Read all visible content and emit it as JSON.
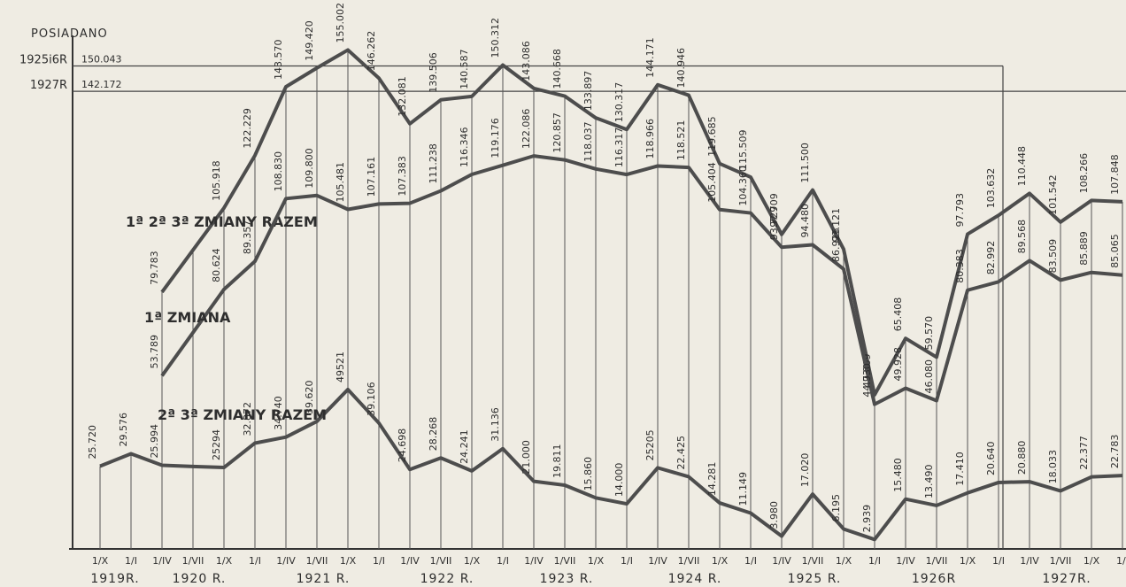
{
  "chart_data": {
    "type": "line",
    "title": "POSIADANO",
    "categories": [
      "1/X",
      "1/I",
      "1/IV",
      "1/VII",
      "1/X",
      "1/I",
      "1/IV",
      "1/VII",
      "1/X",
      "1/I",
      "1/IV",
      "1/VII",
      "1/X",
      "1/I",
      "1/IV",
      "1/VII",
      "1/X",
      "1/I",
      "1/IV",
      "1/VII",
      "1/X",
      "1/I",
      "1/IV",
      "1/VII",
      "1/X",
      "1/I",
      "1/IV",
      "1/VII",
      "1/X",
      "1/I",
      "1/IV",
      "1/VII",
      "1/X",
      "1/I"
    ],
    "years": [
      "1919R.",
      "1920 R.",
      "1921 R.",
      "1922 R.",
      "1923 R.",
      "1924 R.",
      "1925 R.",
      "1926R",
      "1927R."
    ],
    "ylim": [
      0,
      162000
    ],
    "reference_lines": [
      {
        "label": "1925i6R",
        "value": 150043,
        "value_label": "150.043"
      },
      {
        "label": "1927R",
        "value": 142172,
        "value_label": "142.172"
      }
    ],
    "series": [
      {
        "name": "1ª 2ª 3ª ZMIANY RAZEM",
        "color": "#4d4d4d",
        "values": [
          null,
          null,
          79783,
          92850,
          105918,
          122229,
          143570,
          149420,
          155002,
          146262,
          132081,
          139506,
          140587,
          150312,
          143086,
          140668,
          133897,
          130317,
          144171,
          140946,
          119685,
          115509,
          97709,
          111500,
          93121,
          47869,
          65408,
          59570,
          97793,
          103632,
          110448,
          101542,
          108266,
          107848
        ],
        "value_labels": [
          null,
          null,
          "79.783",
          null,
          "105.918",
          "122.229",
          "143.570",
          "149.420",
          "155.002",
          "146.262",
          "132.081",
          "139.506",
          "140.587",
          "150.312",
          "143.086",
          "140.668",
          "133.897",
          "130.317",
          "144.171",
          "140.946",
          "119.685",
          "115.509",
          "97.709",
          "111.500",
          "93.121",
          "47.869",
          "65.408",
          "59.570",
          "97.793",
          "103.632",
          "110.448",
          "101.542",
          "108.266",
          "107.848"
        ]
      },
      {
        "name": "1ª ZMIANA",
        "color": "#4d4d4d",
        "values": [
          null,
          null,
          53789,
          67200,
          80624,
          89357,
          108830,
          109800,
          105481,
          107161,
          107383,
          111238,
          116346,
          119176,
          122086,
          120857,
          118037,
          116317,
          118966,
          118521,
          105404,
          104360,
          93729,
          94480,
          86926,
          44930,
          49928,
          46080,
          80383,
          82992,
          89568,
          83509,
          85889,
          85065
        ],
        "value_labels": [
          null,
          null,
          "53.789",
          null,
          "80.624",
          "89.357",
          "108.830",
          "109.800",
          "105.481",
          "107.161",
          "107.383",
          "111.238",
          "116.346",
          "119.176",
          "122.086",
          "120.857",
          "118.037",
          "116.317",
          "118.966",
          "118.521",
          "105.404",
          "104.360",
          "93.729",
          "94.480",
          "86.926",
          "44.930",
          "49.928",
          "46.080",
          "80.383",
          "82.992",
          "89.568",
          "83.509",
          "85.889",
          "85.065"
        ]
      },
      {
        "name": "2ª 3ª ZMIANY RAZEM",
        "color": "#4d4d4d",
        "values": [
          25720,
          29576,
          25994,
          25600,
          25294,
          32872,
          34740,
          39620,
          49521,
          39106,
          24698,
          28268,
          24241,
          31136,
          21000,
          19811,
          15860,
          14000,
          25205,
          22425,
          14281,
          11149,
          3980,
          17020,
          6195,
          2939,
          15480,
          13490,
          17410,
          20640,
          20880,
          18033,
          22377,
          22783
        ],
        "value_labels": [
          "25.720",
          "29.576",
          "25.994",
          null,
          "25294",
          "32.872",
          "34.740",
          "39.620",
          "49521",
          "39.106",
          "24.698",
          "28.268",
          "24.241",
          "31.136",
          "21.000",
          "19.811",
          "15.860",
          "14.000",
          "25205",
          "22.425",
          "14.281",
          "11.149",
          "3.980",
          "17.020",
          "6.195",
          "2.939",
          "15.480",
          "13.490",
          "17.410",
          "20.640",
          "20.880",
          "18.033",
          "22.377",
          "22.783"
        ]
      }
    ]
  }
}
